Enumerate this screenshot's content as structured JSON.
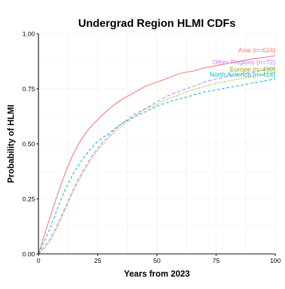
{
  "chart_data": {
    "type": "line",
    "title": "Undergrad Region HLMI CDFs",
    "xlabel": "Years from 2023",
    "ylabel": "Probability of HLMI",
    "xlim": [
      0,
      100
    ],
    "ylim": [
      0,
      1
    ],
    "x_ticks": [
      "0",
      "25",
      "50",
      "75",
      "100"
    ],
    "y_ticks": [
      "0.00",
      "0.25",
      "0.50",
      "0.75",
      "1.00"
    ],
    "x_tick_values": [
      0,
      25,
      50,
      75,
      100
    ],
    "y_tick_values": [
      0,
      0.25,
      0.5,
      0.75,
      1.0
    ],
    "grid": true,
    "legend": "inline-labels",
    "x": [
      0,
      5,
      10,
      15,
      20,
      25,
      30,
      35,
      40,
      45,
      50,
      55,
      60,
      65,
      70,
      75,
      80,
      85,
      90,
      95,
      100
    ],
    "series": [
      {
        "name": "Asia (n=624)",
        "color": "#f8766d",
        "dash": "solid",
        "values": [
          0,
          0.17,
          0.33,
          0.46,
          0.55,
          0.61,
          0.66,
          0.7,
          0.73,
          0.76,
          0.78,
          0.8,
          0.82,
          0.83,
          0.845,
          0.855,
          0.865,
          0.875,
          0.885,
          0.892,
          0.9
        ]
      },
      {
        "name": "Other Regions (n=72)",
        "color": "#c77cff",
        "dash": "long-dash",
        "values": [
          0,
          0.07,
          0.18,
          0.3,
          0.4,
          0.48,
          0.54,
          0.59,
          0.63,
          0.66,
          0.69,
          0.72,
          0.74,
          0.76,
          0.78,
          0.795,
          0.805,
          0.815,
          0.825,
          0.835,
          0.845
        ]
      },
      {
        "name": "Europe (n=499)",
        "color": "#7cae00",
        "dash": "dotted",
        "values": [
          0,
          0.06,
          0.17,
          0.29,
          0.39,
          0.47,
          0.53,
          0.58,
          0.62,
          0.655,
          0.68,
          0.705,
          0.725,
          0.745,
          0.76,
          0.775,
          0.785,
          0.795,
          0.805,
          0.815,
          0.825
        ]
      },
      {
        "name": "North America (n=414)",
        "color": "#00bfc4",
        "dash": "dashed",
        "values": [
          0,
          0.12,
          0.26,
          0.37,
          0.45,
          0.51,
          0.55,
          0.59,
          0.62,
          0.645,
          0.67,
          0.69,
          0.705,
          0.72,
          0.735,
          0.745,
          0.755,
          0.765,
          0.775,
          0.785,
          0.795
        ]
      }
    ]
  }
}
